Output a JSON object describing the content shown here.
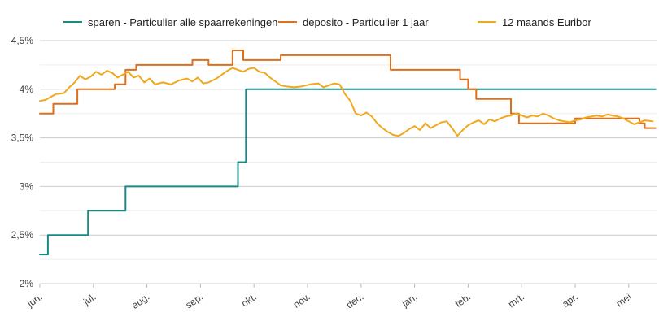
{
  "chart_data": {
    "type": "line",
    "title": "",
    "xlabel": "",
    "ylabel": "",
    "ylim": [
      2.0,
      4.5
    ],
    "xlim_months": [
      0,
      11.5
    ],
    "y_ticks": [
      {
        "value": 2.0,
        "label": "2%"
      },
      {
        "value": 2.5,
        "label": "2,5%"
      },
      {
        "value": 3.0,
        "label": "3%"
      },
      {
        "value": 3.5,
        "label": "3,5%"
      },
      {
        "value": 4.0,
        "label": "4%"
      },
      {
        "value": 4.5,
        "label": "4,5%"
      }
    ],
    "minor_gridlines": [
      2.25,
      2.75,
      3.25,
      3.75,
      4.25
    ],
    "x_ticks": [
      "jun.",
      "jul.",
      "aug.",
      "sep.",
      "okt.",
      "nov.",
      "dec.",
      "jan.",
      "feb.",
      "mrt.",
      "apr.",
      "mei"
    ],
    "legend_position": "top",
    "series": [
      {
        "name": "sparen - Particulier alle spaarrekeningen",
        "color": "#1a8a86",
        "style": "step",
        "points": [
          [
            0,
            2.3
          ],
          [
            0.15,
            2.3
          ],
          [
            0.15,
            2.5
          ],
          [
            0.9,
            2.5
          ],
          [
            0.9,
            2.75
          ],
          [
            1.6,
            2.75
          ],
          [
            1.6,
            3.0
          ],
          [
            3.7,
            3.0
          ],
          [
            3.7,
            3.25
          ],
          [
            3.85,
            3.25
          ],
          [
            3.85,
            4.0
          ],
          [
            11.5,
            4.0
          ]
        ]
      },
      {
        "name": "deposito - Particulier 1 jaar",
        "color": "#e06f1a",
        "style": "step",
        "points": [
          [
            0,
            3.75
          ],
          [
            0.25,
            3.75
          ],
          [
            0.25,
            3.85
          ],
          [
            0.7,
            3.85
          ],
          [
            0.7,
            4.0
          ],
          [
            1.4,
            4.0
          ],
          [
            1.4,
            4.05
          ],
          [
            1.6,
            4.05
          ],
          [
            1.6,
            4.2
          ],
          [
            1.8,
            4.2
          ],
          [
            1.8,
            4.25
          ],
          [
            2.85,
            4.25
          ],
          [
            2.85,
            4.3
          ],
          [
            3.15,
            4.3
          ],
          [
            3.15,
            4.25
          ],
          [
            3.6,
            4.25
          ],
          [
            3.6,
            4.4
          ],
          [
            3.8,
            4.4
          ],
          [
            3.8,
            4.3
          ],
          [
            4.5,
            4.3
          ],
          [
            4.5,
            4.35
          ],
          [
            6.55,
            4.35
          ],
          [
            6.55,
            4.2
          ],
          [
            7.85,
            4.2
          ],
          [
            7.85,
            4.1
          ],
          [
            8.0,
            4.1
          ],
          [
            8.0,
            4.0
          ],
          [
            8.15,
            4.0
          ],
          [
            8.15,
            3.9
          ],
          [
            8.8,
            3.9
          ],
          [
            8.8,
            3.75
          ],
          [
            8.95,
            3.75
          ],
          [
            8.95,
            3.65
          ],
          [
            10.0,
            3.65
          ],
          [
            10.0,
            3.7
          ],
          [
            11.2,
            3.7
          ],
          [
            11.2,
            3.65
          ],
          [
            11.3,
            3.65
          ],
          [
            11.3,
            3.6
          ],
          [
            11.5,
            3.6
          ]
        ]
      },
      {
        "name": "12 maands Euribor",
        "color": "#f0a81c",
        "style": "line",
        "points": [
          [
            0,
            3.88
          ],
          [
            0.1,
            3.89
          ],
          [
            0.2,
            3.92
          ],
          [
            0.3,
            3.95
          ],
          [
            0.45,
            3.96
          ],
          [
            0.55,
            4.02
          ],
          [
            0.65,
            4.07
          ],
          [
            0.75,
            4.14
          ],
          [
            0.85,
            4.1
          ],
          [
            0.95,
            4.13
          ],
          [
            1.05,
            4.18
          ],
          [
            1.15,
            4.15
          ],
          [
            1.25,
            4.19
          ],
          [
            1.35,
            4.17
          ],
          [
            1.45,
            4.12
          ],
          [
            1.55,
            4.15
          ],
          [
            1.65,
            4.18
          ],
          [
            1.75,
            4.12
          ],
          [
            1.85,
            4.14
          ],
          [
            1.95,
            4.07
          ],
          [
            2.05,
            4.11
          ],
          [
            2.15,
            4.05
          ],
          [
            2.3,
            4.07
          ],
          [
            2.45,
            4.05
          ],
          [
            2.6,
            4.09
          ],
          [
            2.75,
            4.11
          ],
          [
            2.85,
            4.08
          ],
          [
            2.95,
            4.12
          ],
          [
            3.05,
            4.06
          ],
          [
            3.15,
            4.07
          ],
          [
            3.3,
            4.11
          ],
          [
            3.4,
            4.15
          ],
          [
            3.5,
            4.19
          ],
          [
            3.6,
            4.22
          ],
          [
            3.7,
            4.2
          ],
          [
            3.8,
            4.18
          ],
          [
            3.9,
            4.21
          ],
          [
            4.0,
            4.22
          ],
          [
            4.1,
            4.18
          ],
          [
            4.2,
            4.17
          ],
          [
            4.3,
            4.12
          ],
          [
            4.4,
            4.08
          ],
          [
            4.5,
            4.04
          ],
          [
            4.6,
            4.03
          ],
          [
            4.75,
            4.02
          ],
          [
            4.9,
            4.03
          ],
          [
            5.05,
            4.05
          ],
          [
            5.2,
            4.06
          ],
          [
            5.3,
            4.02
          ],
          [
            5.4,
            4.04
          ],
          [
            5.5,
            4.06
          ],
          [
            5.6,
            4.05
          ],
          [
            5.7,
            3.95
          ],
          [
            5.8,
            3.88
          ],
          [
            5.9,
            3.75
          ],
          [
            6.0,
            3.73
          ],
          [
            6.1,
            3.76
          ],
          [
            6.2,
            3.72
          ],
          [
            6.3,
            3.65
          ],
          [
            6.4,
            3.6
          ],
          [
            6.5,
            3.56
          ],
          [
            6.6,
            3.53
          ],
          [
            6.7,
            3.52
          ],
          [
            6.8,
            3.55
          ],
          [
            6.9,
            3.59
          ],
          [
            7.0,
            3.62
          ],
          [
            7.1,
            3.58
          ],
          [
            7.2,
            3.65
          ],
          [
            7.3,
            3.6
          ],
          [
            7.4,
            3.63
          ],
          [
            7.5,
            3.66
          ],
          [
            7.6,
            3.67
          ],
          [
            7.7,
            3.6
          ],
          [
            7.8,
            3.52
          ],
          [
            7.9,
            3.58
          ],
          [
            8.0,
            3.63
          ],
          [
            8.1,
            3.66
          ],
          [
            8.2,
            3.68
          ],
          [
            8.3,
            3.64
          ],
          [
            8.4,
            3.69
          ],
          [
            8.5,
            3.67
          ],
          [
            8.6,
            3.7
          ],
          [
            8.7,
            3.72
          ],
          [
            8.8,
            3.73
          ],
          [
            8.9,
            3.75
          ],
          [
            9.0,
            3.73
          ],
          [
            9.1,
            3.71
          ],
          [
            9.2,
            3.73
          ],
          [
            9.3,
            3.72
          ],
          [
            9.4,
            3.75
          ],
          [
            9.5,
            3.73
          ],
          [
            9.6,
            3.7
          ],
          [
            9.7,
            3.68
          ],
          [
            9.8,
            3.67
          ],
          [
            9.9,
            3.66
          ],
          [
            10.0,
            3.68
          ],
          [
            10.1,
            3.69
          ],
          [
            10.2,
            3.71
          ],
          [
            10.3,
            3.72
          ],
          [
            10.4,
            3.73
          ],
          [
            10.5,
            3.72
          ],
          [
            10.6,
            3.74
          ],
          [
            10.7,
            3.73
          ],
          [
            10.8,
            3.72
          ],
          [
            10.9,
            3.7
          ],
          [
            11.0,
            3.67
          ],
          [
            11.1,
            3.64
          ],
          [
            11.2,
            3.66
          ],
          [
            11.3,
            3.68
          ],
          [
            11.45,
            3.67
          ]
        ]
      }
    ]
  }
}
